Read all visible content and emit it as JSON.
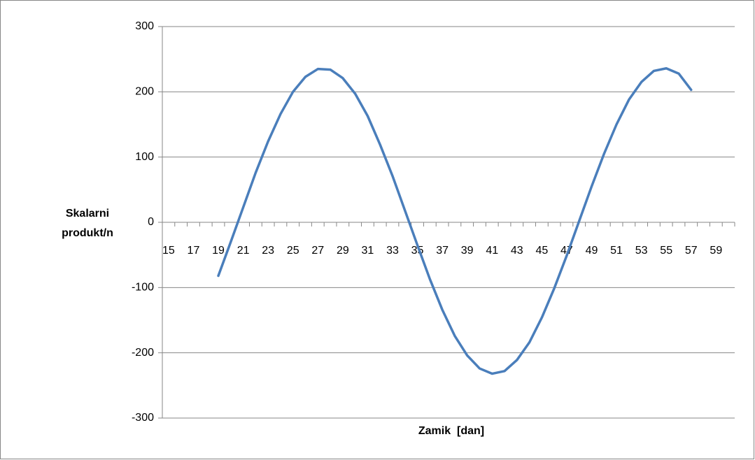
{
  "chart_data": {
    "type": "line",
    "x_label": "Zamik  [dan]",
    "y_label": "Skalarni produkt/n",
    "categories": [
      15,
      null,
      17,
      null,
      19,
      null,
      21,
      null,
      23,
      null,
      25,
      null,
      27,
      null,
      29,
      null,
      31,
      null,
      33,
      null,
      35,
      null,
      37,
      null,
      39,
      null,
      41,
      null,
      43,
      null,
      45,
      null,
      47,
      null,
      49,
      null,
      51,
      null,
      53,
      null,
      55,
      null,
      57,
      null,
      59,
      null
    ],
    "series": [
      {
        "name": "Skalarni produkt/n",
        "color": "#4a7ebb",
        "values": [
          null,
          null,
          null,
          null,
          -82,
          -30,
          23,
          76,
          124,
          166,
          200,
          223,
          235,
          234,
          221,
          197,
          163,
          119,
          71,
          18,
          -35,
          -87,
          -134,
          -174,
          -204,
          -224,
          -232,
          -228,
          -211,
          -184,
          -146,
          -101,
          -51,
          2,
          55,
          105,
          150,
          188,
          215,
          232,
          236,
          228,
          203,
          null,
          null,
          null
        ]
      }
    ],
    "ylim": [
      -300,
      300
    ],
    "yticks": [
      -300,
      -200,
      -100,
      0,
      100,
      200,
      300
    ],
    "grid": true
  }
}
